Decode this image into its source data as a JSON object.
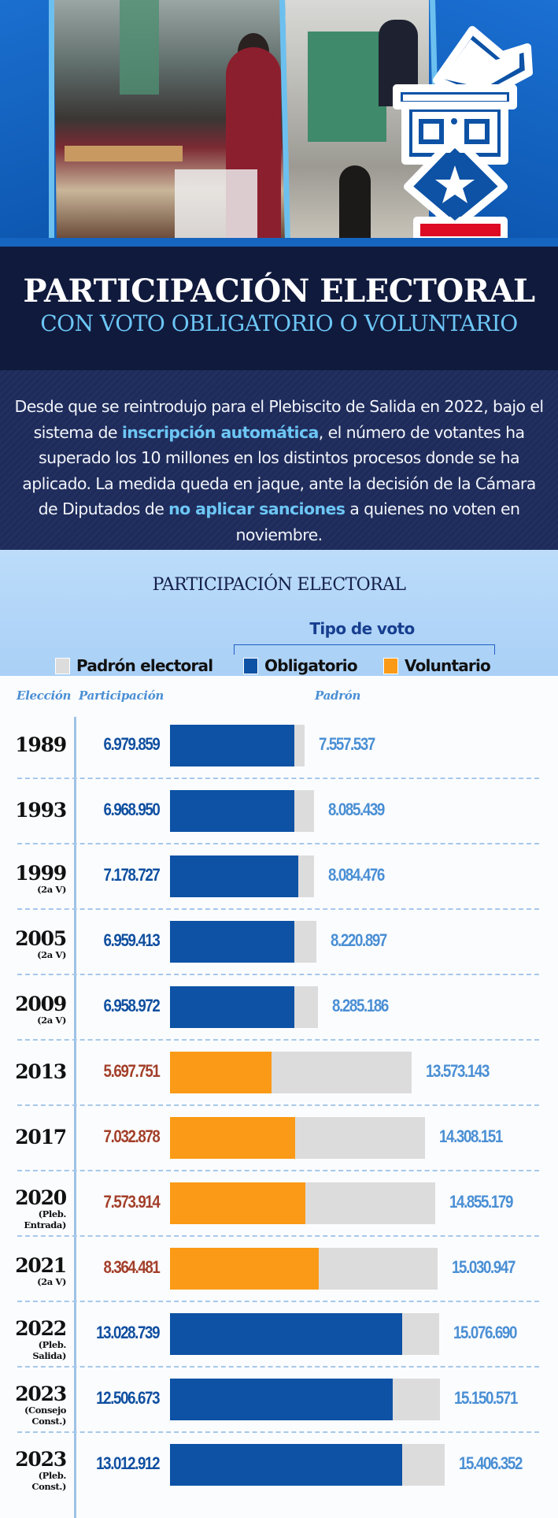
{
  "header": {
    "title": "PARTICIPACIÓN ELECTORAL",
    "subtitle": "CON VOTO OBLIGATORIO O VOLUNTARIO",
    "icon": "ballot-box-chile-flag-icon"
  },
  "intro": {
    "part1": "Desde que se reintrodujo para el Plebiscito de Salida en 2022, bajo el sistema de ",
    "highlight1": "inscripción automática",
    "part2": ", el número de votantes ha superado los 10 millones en los distintos procesos donde se ha aplicado. La medida queda en jaque, ante la decisión de la Cámara de Diputados de ",
    "highlight2": "no aplicar sanciones",
    "part3": " a quienes no voten en noviembre."
  },
  "colors": {
    "obligatorio": "#0d52a5",
    "voluntario": "#fb9a16",
    "padron": "#dcdcdc",
    "obligatorio_text": "#0f4fa0",
    "voluntario_text": "#a33f2a",
    "padron_text": "#4a8fd4",
    "highlight": "#6cc6f5"
  },
  "chart_data": {
    "type": "bar",
    "title": "PARTICIPACIÓN ELECTORAL",
    "legend_group_title": "Tipo de voto",
    "legend": [
      {
        "key": "padron",
        "label": "Padrón electoral"
      },
      {
        "key": "obligatorio",
        "label": "Obligatorio"
      },
      {
        "key": "voluntario",
        "label": "Voluntario"
      }
    ],
    "columns": {
      "eleccion": "Elección",
      "participacion": "Participación",
      "padron": "Padrón"
    },
    "rows": [
      {
        "year": "1989",
        "sub": "",
        "participacion": 6979859,
        "participacion_label": "6.979.859",
        "padron": 7557537,
        "padron_label": "7.557.537",
        "tipo": "obligatorio"
      },
      {
        "year": "1993",
        "sub": "",
        "participacion": 6968950,
        "participacion_label": "6.968.950",
        "padron": 8085439,
        "padron_label": "8.085.439",
        "tipo": "obligatorio"
      },
      {
        "year": "1999",
        "sub": "(2a V)",
        "participacion": 7178727,
        "participacion_label": "7.178.727",
        "padron": 8084476,
        "padron_label": "8.084.476",
        "tipo": "obligatorio"
      },
      {
        "year": "2005",
        "sub": "(2a V)",
        "participacion": 6959413,
        "participacion_label": "6.959.413",
        "padron": 8220897,
        "padron_label": "8.220.897",
        "tipo": "obligatorio"
      },
      {
        "year": "2009",
        "sub": "(2a V)",
        "participacion": 6958972,
        "participacion_label": "6.958.972",
        "padron": 8285186,
        "padron_label": "8.285.186",
        "tipo": "obligatorio"
      },
      {
        "year": "2013",
        "sub": "",
        "participacion": 5697751,
        "participacion_label": "5.697.751",
        "padron": 13573143,
        "padron_label": "13.573.143",
        "tipo": "voluntario"
      },
      {
        "year": "2017",
        "sub": "",
        "participacion": 7032878,
        "participacion_label": "7.032.878",
        "padron": 14308151,
        "padron_label": "14.308.151",
        "tipo": "voluntario"
      },
      {
        "year": "2020",
        "sub": "(Pleb.\nEntrada)",
        "participacion": 7573914,
        "participacion_label": "7.573.914",
        "padron": 14855179,
        "padron_label": "14.855.179",
        "tipo": "voluntario"
      },
      {
        "year": "2021",
        "sub": "(2a V)",
        "participacion": 8364481,
        "participacion_label": "8.364.481",
        "padron": 15030947,
        "padron_label": "15.030.947",
        "tipo": "voluntario"
      },
      {
        "year": "2022",
        "sub": "(Pleb.\nSalida)",
        "participacion": 13028739,
        "participacion_label": "13.028.739",
        "padron": 15076690,
        "padron_label": "15.076.690",
        "tipo": "obligatorio"
      },
      {
        "year": "2023",
        "sub": "(Consejo\nConst.)",
        "participacion": 12506673,
        "participacion_label": "12.506.673",
        "padron": 15150571,
        "padron_label": "15.150.571",
        "tipo": "obligatorio"
      },
      {
        "year": "2023",
        "sub": "(Pleb.\nConst.)",
        "participacion": 13012912,
        "participacion_label": "13.012.912",
        "padron": 15406352,
        "padron_label": "15.406.352",
        "tipo": "obligatorio"
      }
    ],
    "xlim": [
      0,
      15406352
    ]
  }
}
